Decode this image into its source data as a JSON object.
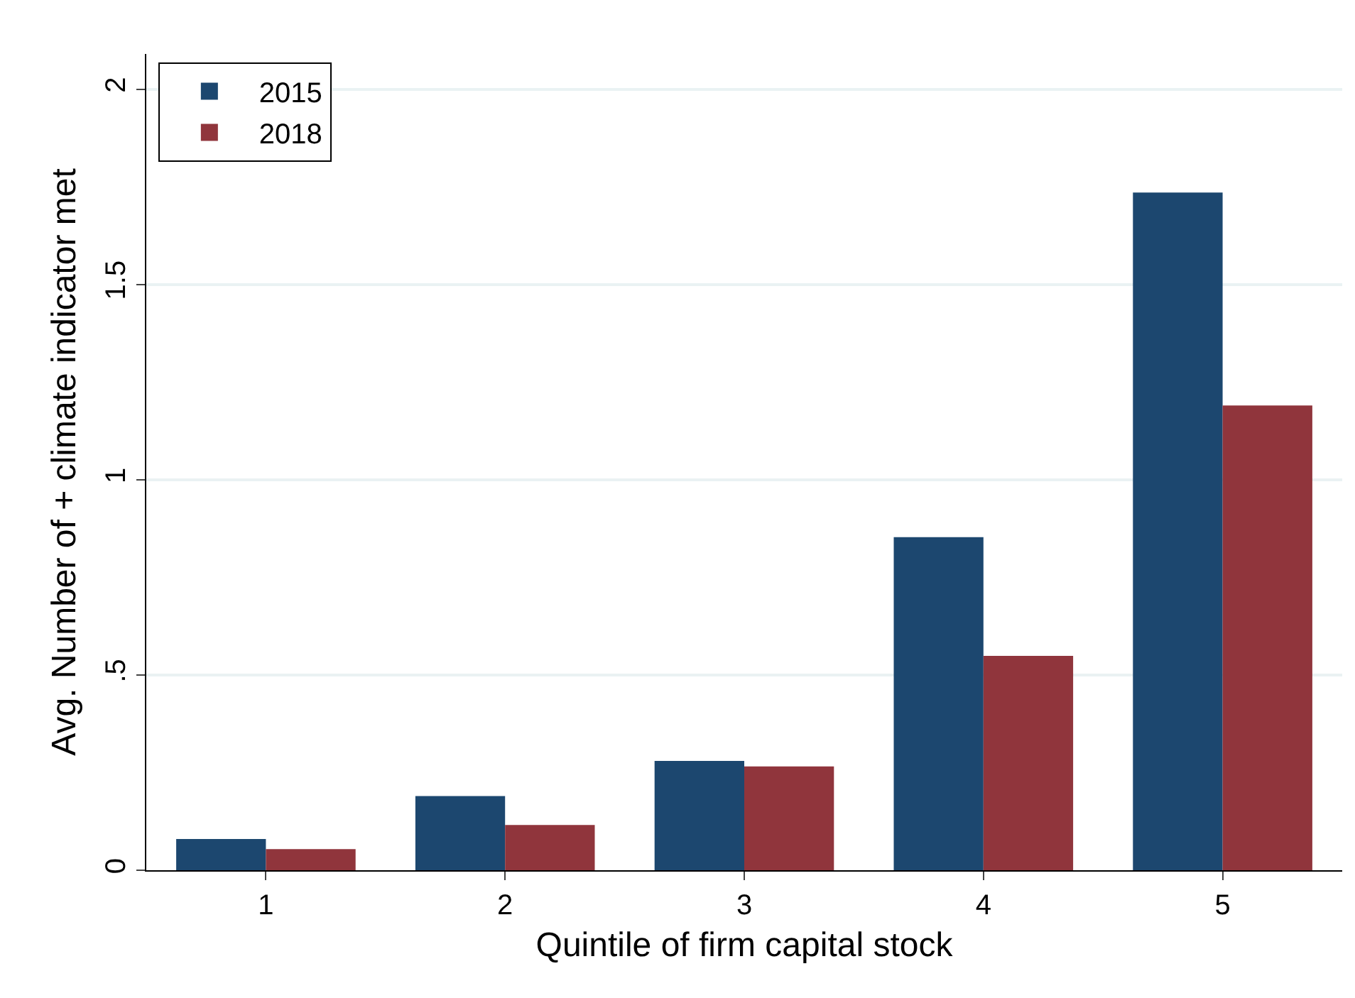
{
  "chart_data": {
    "type": "bar",
    "xlabel": "Quintile of firm capital stock",
    "ylabel": "Avg. Number of + climate indicator met",
    "categories": [
      "1",
      "2",
      "3",
      "4",
      "5"
    ],
    "series": [
      {
        "name": "2015",
        "color": "#1c476f",
        "values": [
          0.08,
          0.19,
          0.28,
          0.853,
          1.735
        ]
      },
      {
        "name": "2018",
        "color": "#90353c",
        "values": [
          0.054,
          0.116,
          0.266,
          0.549,
          1.19
        ]
      }
    ],
    "ylim": [
      0,
      2.09
    ],
    "yticks": [
      0,
      {
        "value": 0.5,
        "label": ".5"
      },
      1,
      1.5,
      2
    ],
    "grid": "y",
    "legend": "top left"
  }
}
